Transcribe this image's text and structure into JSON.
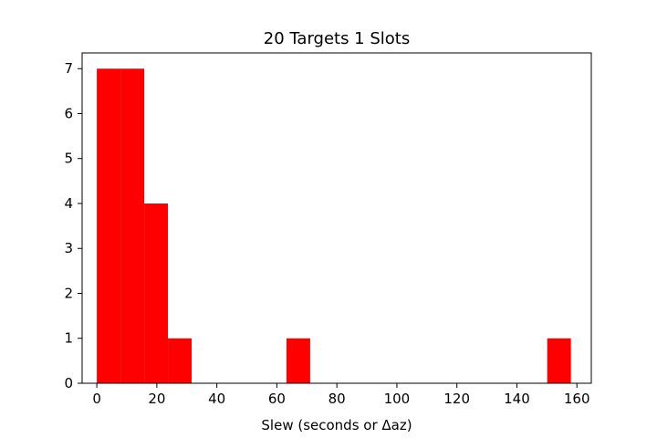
{
  "chart_data": {
    "type": "bar",
    "title": "20 Targets 1 Slots",
    "xlabel": "Slew (seconds or Δaz)",
    "ylabel": "",
    "bins": [
      {
        "x0": 0,
        "x1": 7.9,
        "count": 7
      },
      {
        "x0": 7.9,
        "x1": 15.8,
        "count": 7
      },
      {
        "x0": 15.8,
        "x1": 23.7,
        "count": 4
      },
      {
        "x0": 23.7,
        "x1": 31.6,
        "count": 1
      },
      {
        "x0": 31.6,
        "x1": 39.5,
        "count": 0
      },
      {
        "x0": 39.5,
        "x1": 47.4,
        "count": 0
      },
      {
        "x0": 47.4,
        "x1": 55.3,
        "count": 0
      },
      {
        "x0": 55.3,
        "x1": 63.2,
        "count": 0
      },
      {
        "x0": 63.2,
        "x1": 71.1,
        "count": 1
      },
      {
        "x0": 71.1,
        "x1": 79.0,
        "count": 0
      },
      {
        "x0": 79.0,
        "x1": 86.9,
        "count": 0
      },
      {
        "x0": 86.9,
        "x1": 94.8,
        "count": 0
      },
      {
        "x0": 94.8,
        "x1": 102.7,
        "count": 0
      },
      {
        "x0": 102.7,
        "x1": 110.6,
        "count": 0
      },
      {
        "x0": 110.6,
        "x1": 118.5,
        "count": 0
      },
      {
        "x0": 118.5,
        "x1": 126.4,
        "count": 0
      },
      {
        "x0": 126.4,
        "x1": 134.3,
        "count": 0
      },
      {
        "x0": 134.3,
        "x1": 142.2,
        "count": 0
      },
      {
        "x0": 142.2,
        "x1": 150.1,
        "count": 0
      },
      {
        "x0": 150.1,
        "x1": 158.0,
        "count": 1
      }
    ],
    "xlim": [
      -4.9,
      164.8
    ],
    "ylim": [
      0,
      7.35
    ],
    "xticks": [
      0,
      20,
      40,
      60,
      80,
      100,
      120,
      140,
      160
    ],
    "yticks": [
      0,
      1,
      2,
      3,
      4,
      5,
      6,
      7
    ],
    "bar_color": "#ff0000",
    "grid": false
  }
}
